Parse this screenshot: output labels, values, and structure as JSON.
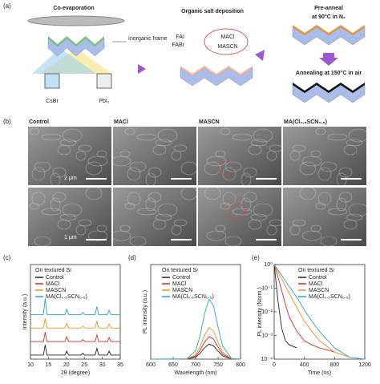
{
  "panels": {
    "labels": [
      "(a)",
      "(b)",
      "(c)",
      "(d)",
      "(e)"
    ]
  },
  "diagram": {
    "step1": "Co-evaporation",
    "frame": "Inorganic frame",
    "source1": "CsBr",
    "source2": "PbI₂",
    "step2": "Organic salt deposition",
    "salts": [
      "FAI",
      "FABr"
    ],
    "additives": [
      "MACl",
      "MASCN"
    ],
    "step3": [
      "Pre-anneal",
      "at 90°C in N₂"
    ],
    "step4": "Annealing at 150°C in air"
  },
  "sem": {
    "columns": [
      "Control",
      "MACl",
      "MASCN",
      "MA(Cl₀.₅SCN₀.₅)"
    ],
    "scale_top": "2 μm",
    "scale_bottom": "1 μm"
  },
  "chart_data": [
    {
      "type": "line",
      "xlabel": "2θ (degree)",
      "ylabel": "Intensity (a.u.)",
      "annotation": "On textured Si",
      "x": [
        10,
        13.6,
        14.1,
        14.6,
        19.6,
        20.1,
        20.6,
        24.1,
        24.6,
        25.1,
        28.0,
        28.5,
        29.0,
        31.4,
        31.9,
        32.4,
        35
      ],
      "xlim": [
        10,
        35
      ],
      "xticks": [
        10,
        15,
        20,
        25,
        30,
        35
      ],
      "ylim": [
        0,
        14
      ],
      "series": [
        {
          "name": "Control",
          "color": "#222222",
          "values": [
            0.6,
            0.6,
            2.1,
            0.6,
            0.6,
            1.2,
            0.6,
            0.6,
            0.9,
            0.6,
            0.6,
            1.6,
            0.6,
            0.6,
            1.2,
            0.6,
            0.6
          ]
        },
        {
          "name": "MACl",
          "color": "#d62728",
          "values": [
            2.6,
            2.6,
            4.0,
            2.6,
            2.6,
            3.3,
            2.6,
            2.6,
            2.9,
            2.6,
            2.6,
            3.6,
            2.6,
            2.6,
            3.2,
            2.6,
            2.6
          ]
        },
        {
          "name": "MASCN",
          "color": "#f28e1c",
          "values": [
            4.6,
            4.6,
            6.0,
            4.6,
            4.6,
            5.3,
            4.6,
            4.6,
            4.9,
            4.6,
            4.6,
            5.6,
            4.6,
            4.6,
            5.2,
            4.6,
            4.6
          ]
        },
        {
          "name": "MA(Cl₀.₅SCN₀.₅)",
          "color": "#2aa6c4",
          "values": [
            6.6,
            6.6,
            9.0,
            6.6,
            6.6,
            7.4,
            6.6,
            6.6,
            6.9,
            6.6,
            6.6,
            7.8,
            6.6,
            6.6,
            7.2,
            6.6,
            6.6
          ]
        }
      ]
    },
    {
      "type": "line",
      "xlabel": "Wavelength (nm)",
      "ylabel": "PL intensity (a.u.)",
      "annotation": "On textured Si",
      "x": [
        600,
        680,
        700,
        710,
        720,
        730,
        740,
        750,
        760,
        780,
        800
      ],
      "xlim": [
        600,
        800
      ],
      "xticks": [
        600,
        650,
        700,
        750,
        800
      ],
      "ylim": [
        0,
        1.25
      ],
      "series": [
        {
          "name": "Control",
          "color": "#222222",
          "values": [
            0,
            0.001,
            0.027,
            0.078,
            0.151,
            0.198,
            0.176,
            0.106,
            0.044,
            0.002,
            0
          ]
        },
        {
          "name": "MACl",
          "color": "#d62728",
          "values": [
            0,
            0.002,
            0.04,
            0.117,
            0.227,
            0.297,
            0.264,
            0.159,
            0.066,
            0.003,
            0
          ]
        },
        {
          "name": "MASCN",
          "color": "#f28e1c",
          "values": [
            0,
            0.002,
            0.057,
            0.164,
            0.317,
            0.416,
            0.37,
            0.223,
            0.092,
            0.005,
            0
          ]
        },
        {
          "name": "MA(Cl₀.₅SCN₀.₅)",
          "color": "#2aa6c4",
          "values": [
            0,
            0.004,
            0.108,
            0.312,
            0.604,
            0.792,
            0.704,
            0.424,
            0.176,
            0.009,
            0
          ]
        }
      ]
    },
    {
      "type": "line",
      "xlabel": "Time (ns)",
      "ylabel": "PL intensity (Norm.)",
      "annotation": "On textured Si",
      "yscale": "log",
      "x": [
        0,
        50,
        100,
        150,
        200,
        300,
        400,
        500,
        600,
        800,
        1000,
        1200
      ],
      "xlim": [
        0,
        1200
      ],
      "xticks": [
        0,
        400,
        800,
        1200
      ],
      "ylim": [
        0.0001,
        1
      ],
      "yticks": [
        {
          "value": 0.0001,
          "label": "10⁻⁴"
        },
        {
          "value": 0.001,
          "label": "10⁻³"
        },
        {
          "value": 0.01,
          "label": "10⁻²"
        },
        {
          "value": 0.1,
          "label": "10⁻¹"
        },
        {
          "value": 1,
          "label": "10⁰"
        }
      ],
      "series": [
        {
          "name": "Control",
          "color": "#222222",
          "values": [
            1,
            0.03,
            0.002,
            0.0006,
            0.0004,
            0.0003,
            null,
            null,
            null,
            null,
            null,
            null
          ]
        },
        {
          "name": "MACl",
          "color": "#d62728",
          "values": [
            1,
            0.3,
            0.08,
            0.02,
            0.006,
            0.0015,
            0.0006,
            0.0004,
            0.0003,
            0.0002,
            null,
            null
          ]
        },
        {
          "name": "MASCN",
          "color": "#f28e1c",
          "values": [
            1,
            0.5,
            0.25,
            0.12,
            0.06,
            0.015,
            0.004,
            0.0015,
            0.0006,
            0.0002,
            0.00012,
            null
          ]
        },
        {
          "name": "MA(Cl₀.₅SCN₀.₅)",
          "color": "#2aa6c4",
          "values": [
            1,
            0.6,
            0.35,
            0.2,
            0.12,
            0.04,
            0.012,
            0.004,
            0.0015,
            0.0003,
            0.00012,
            0.0001
          ]
        }
      ]
    }
  ]
}
